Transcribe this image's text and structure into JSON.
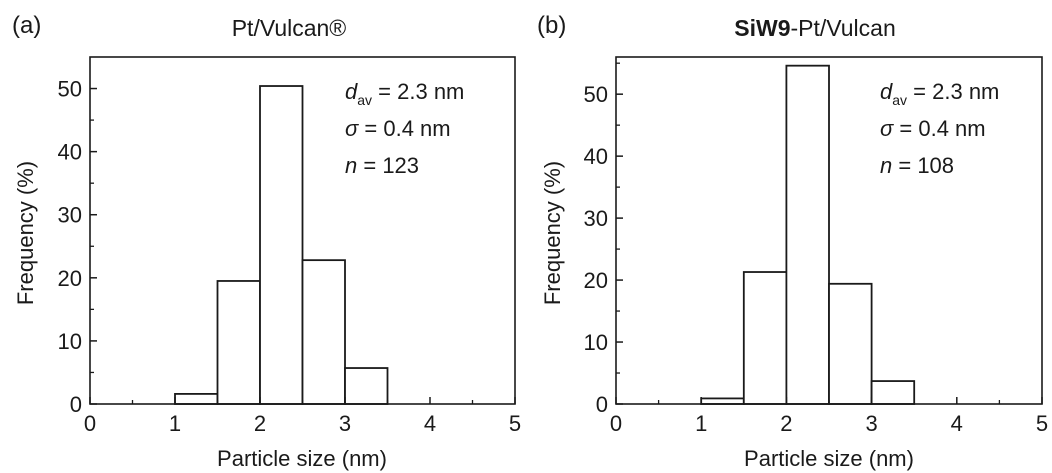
{
  "chart_data": [
    {
      "type": "bar",
      "panel_label": "(a)",
      "title": "Pt/Vulcan®",
      "xlabel": "Particle size (nm)",
      "ylabel": "Frequency (%)",
      "xlim": [
        0,
        5
      ],
      "ylim": [
        0,
        55
      ],
      "xticks": [
        "0",
        "1",
        "2",
        "3",
        "4",
        "5"
      ],
      "yticks": [
        "0",
        "10",
        "20",
        "30",
        "40",
        "50"
      ],
      "bin_width": 0.5,
      "bins": [
        [
          1.0,
          1.5
        ],
        [
          1.5,
          2.0
        ],
        [
          2.0,
          2.5
        ],
        [
          2.5,
          3.0
        ],
        [
          3.0,
          3.5
        ]
      ],
      "values": [
        1.6,
        19.5,
        50.4,
        22.8,
        5.7
      ],
      "annotations": {
        "d_sym": "d",
        "d_sub": "av",
        "d_val": " = 2.3 nm",
        "sigma_sym": "σ",
        "sigma_val": " = 0.4 nm",
        "n_sym": "n",
        "n_val": " = 123"
      },
      "grid": false,
      "legend": "none"
    },
    {
      "type": "bar",
      "panel_label": "(b)",
      "title_bold": "SiW9",
      "title_rest": "-Pt/Vulcan",
      "xlabel": "Particle size (nm)",
      "ylabel": "Frequency (%)",
      "xlim": [
        0,
        5
      ],
      "ylim": [
        0,
        56
      ],
      "xticks": [
        "0",
        "1",
        "2",
        "3",
        "4",
        "5"
      ],
      "yticks": [
        "0",
        "10",
        "20",
        "30",
        "40",
        "50"
      ],
      "bin_width": 0.5,
      "bins": [
        [
          1.0,
          1.5
        ],
        [
          1.5,
          2.0
        ],
        [
          2.0,
          2.5
        ],
        [
          2.5,
          3.0
        ],
        [
          3.0,
          3.5
        ]
      ],
      "values": [
        0.9,
        21.3,
        54.6,
        19.4,
        3.7
      ],
      "annotations": {
        "d_sym": "d",
        "d_sub": "av",
        "d_val": " = 2.3 nm",
        "sigma_sym": "σ",
        "sigma_val": " = 0.4 nm",
        "n_sym": "n",
        "n_val": " = 108"
      },
      "grid": false,
      "legend": "none"
    }
  ]
}
